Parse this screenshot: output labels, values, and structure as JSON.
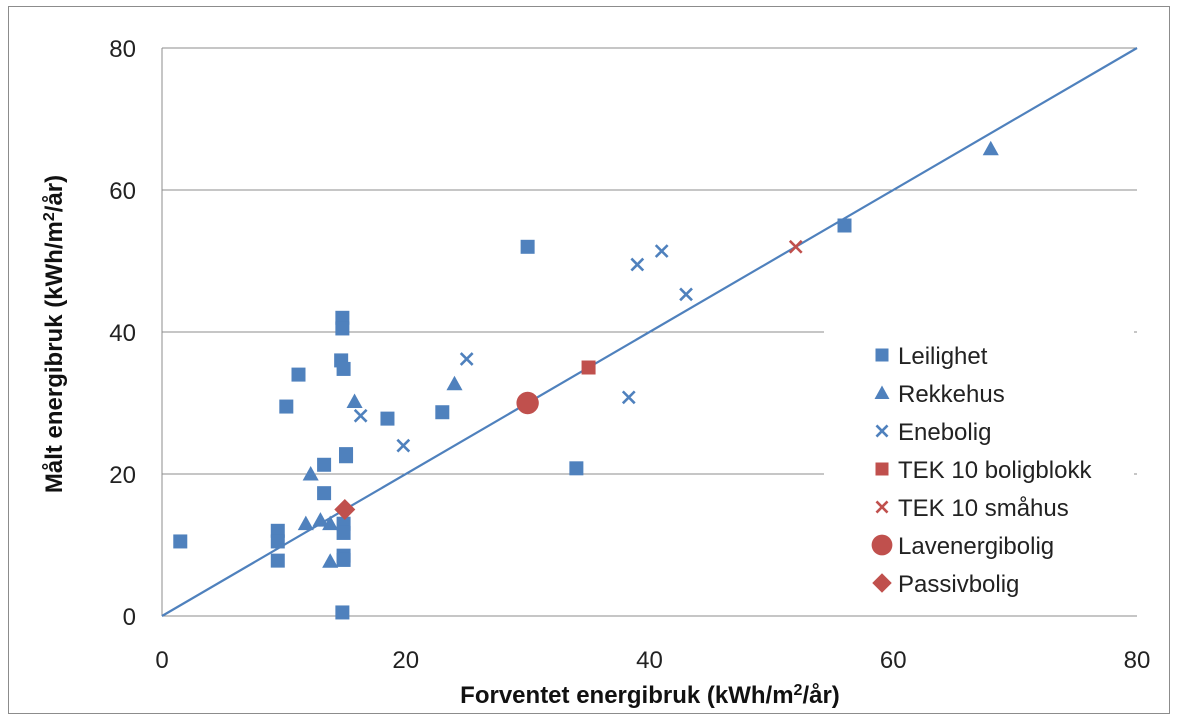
{
  "chart_data": {
    "type": "scatter",
    "title": "",
    "xlabel": "Forventet energibruk (kWh/m²/år)",
    "ylabel": "Målt  energibruk (kWh/m²/år)",
    "xlim": [
      0,
      80
    ],
    "ylim": [
      0,
      80
    ],
    "x_ticks": [
      "0",
      "20",
      "40",
      "60",
      "80"
    ],
    "y_ticks": [
      "0",
      "20",
      "40",
      "60",
      "80"
    ],
    "grid": "horizontal",
    "legend_position": "right",
    "reference_line": {
      "x": [
        0,
        80
      ],
      "y": [
        0,
        80
      ],
      "color": "#4f81bd"
    },
    "series": [
      {
        "name": "Leilighet",
        "marker": "square",
        "color": "#4f81bd",
        "points": [
          [
            1.5,
            10.5
          ],
          [
            9.5,
            12
          ],
          [
            9.5,
            10.5
          ],
          [
            9.5,
            7.8
          ],
          [
            10.2,
            29.5
          ],
          [
            11.2,
            34
          ],
          [
            13.3,
            21.3
          ],
          [
            13.3,
            17.3
          ],
          [
            14.8,
            42
          ],
          [
            14.8,
            40.5
          ],
          [
            14.7,
            36
          ],
          [
            14.9,
            34.8
          ],
          [
            15.1,
            22.5
          ],
          [
            15.1,
            22.8
          ],
          [
            14.9,
            13
          ],
          [
            14.9,
            11.7
          ],
          [
            14.9,
            8.5
          ],
          [
            14.9,
            7.9
          ],
          [
            14.8,
            0.5
          ],
          [
            18.5,
            27.8
          ],
          [
            23,
            28.7
          ],
          [
            30,
            52
          ],
          [
            34,
            20.8
          ],
          [
            56,
            55
          ]
        ]
      },
      {
        "name": "Rekkehus",
        "marker": "triangle",
        "color": "#4f81bd",
        "points": [
          [
            12.2,
            20
          ],
          [
            11.8,
            13
          ],
          [
            13,
            13.5
          ],
          [
            13.8,
            13
          ],
          [
            13.8,
            7.7
          ],
          [
            15.8,
            30.2
          ],
          [
            24,
            32.7
          ],
          [
            68,
            65.8
          ]
        ]
      },
      {
        "name": "Enebolig",
        "marker": "x",
        "color": "#4f81bd",
        "points": [
          [
            16.3,
            28.2
          ],
          [
            19.8,
            24
          ],
          [
            25,
            36.2
          ],
          [
            38.3,
            30.8
          ],
          [
            39,
            49.5
          ],
          [
            41,
            51.4
          ],
          [
            43,
            45.3
          ]
        ]
      },
      {
        "name": "TEK 10 boligblokk",
        "marker": "square",
        "color": "#c0504d",
        "points": [
          [
            35,
            35
          ]
        ]
      },
      {
        "name": "TEK 10 småhus",
        "marker": "x",
        "color": "#c0504d",
        "points": [
          [
            52,
            52
          ]
        ]
      },
      {
        "name": "Lavenergibolig",
        "marker": "circle",
        "color": "#c0504d",
        "points": [
          [
            30,
            30
          ]
        ]
      },
      {
        "name": "Passivbolig",
        "marker": "diamond",
        "color": "#c0504d",
        "points": [
          [
            15,
            15
          ]
        ]
      }
    ]
  }
}
